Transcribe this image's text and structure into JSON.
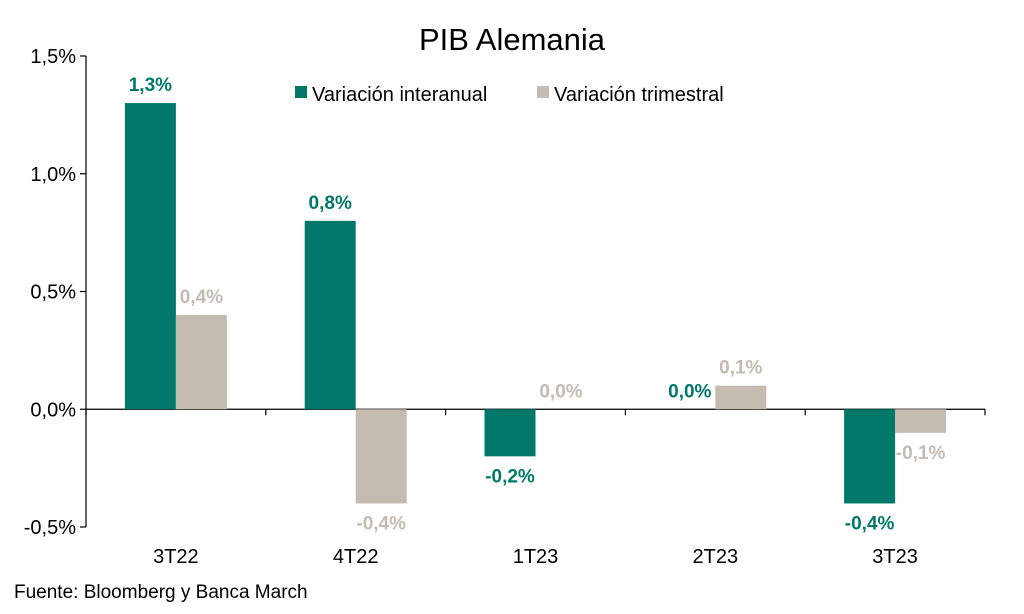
{
  "chart_data": {
    "type": "bar",
    "title": "PIB Alemania",
    "categories": [
      "3T22",
      "4T22",
      "1T23",
      "2T23",
      "3T23"
    ],
    "series": [
      {
        "name": "Variación interanual",
        "color": "#00796b",
        "values": [
          1.3,
          0.8,
          -0.2,
          0.0,
          -0.4
        ],
        "labels": [
          "1,3%",
          "0,8%",
          "-0,2%",
          "0,0%",
          "-0,4%"
        ]
      },
      {
        "name": "Variación trimestral",
        "color": "#c4bbb1",
        "values": [
          0.4,
          -0.4,
          0.0,
          0.1,
          -0.1
        ],
        "labels": [
          "0,4%",
          "-0,4%",
          "0,0%",
          "0,1%",
          "-0,1%"
        ]
      }
    ],
    "yticks": [
      1.5,
      1.0,
      0.5,
      0.0,
      -0.5
    ],
    "ytick_labels": [
      "1,5%",
      "1,0%",
      "0,5%",
      "0,0%",
      "-0,5%"
    ],
    "ylim": [
      -0.5,
      1.5
    ],
    "grid": false,
    "legend_position": "top-center"
  },
  "source": "Fuente: Bloomberg y Banca March"
}
